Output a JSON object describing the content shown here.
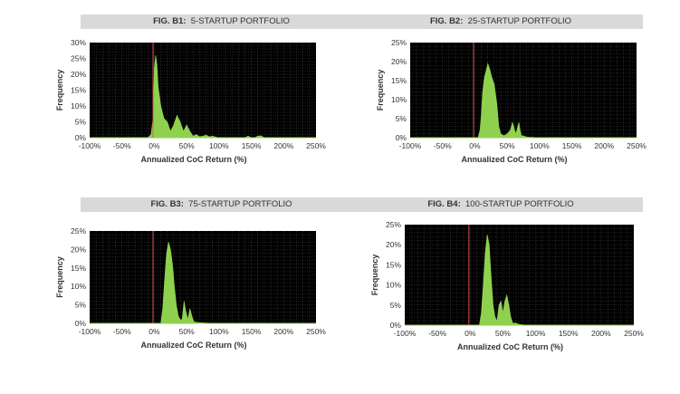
{
  "colors": {
    "plot_bg": "#000000",
    "grid": "#4a4a4a",
    "area_fill": "#8fd14f",
    "marker_line": "#d9534f",
    "title_bar": "#d9d9d9"
  },
  "chart_data": [
    {
      "type": "area",
      "fig_label": "FIG. B1:",
      "title": "5-STARTUP PORTFOLIO",
      "xlabel": "Annualized CoC Return (%)",
      "ylabel": "Frequency",
      "xlim": [
        -100,
        250
      ],
      "ylim": [
        0,
        30
      ],
      "x_ticks": [
        "-100%",
        "-50%",
        "0%",
        "50%",
        "100%",
        "150%",
        "200%",
        "250%"
      ],
      "y_ticks": [
        "0%",
        "5%",
        "10%",
        "15%",
        "20%",
        "25%",
        "30%"
      ],
      "reference_line_x": -2,
      "grid": true,
      "series": [
        {
          "x": [
            -100,
            -10,
            -5,
            -2,
            0,
            2,
            4,
            6,
            10,
            15,
            20,
            25,
            30,
            35,
            40,
            45,
            50,
            55,
            60,
            65,
            70,
            75,
            80,
            85,
            90,
            95,
            100,
            140,
            145,
            150,
            155,
            160,
            165,
            170,
            175,
            180,
            250
          ],
          "y": [
            0,
            0,
            1,
            6,
            22,
            26,
            23,
            16,
            10,
            6,
            5,
            2,
            4,
            7,
            5,
            2,
            4,
            2,
            0.5,
            1,
            0.3,
            0.5,
            0.8,
            0.3,
            0.5,
            0.2,
            0,
            0,
            0.5,
            0,
            0,
            0.5,
            0.6,
            0,
            0,
            0,
            0
          ]
        }
      ]
    },
    {
      "type": "area",
      "fig_label": "FIG. B2:",
      "title": "25-STARTUP PORTFOLIO",
      "xlabel": "Annualized CoC Return (%)",
      "ylabel": "Frequency",
      "xlim": [
        -100,
        250
      ],
      "ylim": [
        0,
        25
      ],
      "x_ticks": [
        "-100%",
        "-50%",
        "0%",
        "50%",
        "100%",
        "150%",
        "200%",
        "250%"
      ],
      "y_ticks": [
        "0%",
        "5%",
        "10%",
        "15%",
        "20%",
        "25%"
      ],
      "reference_line_x": -2,
      "grid": true,
      "series": [
        {
          "x": [
            -100,
            5,
            8,
            10,
            12,
            15,
            18,
            20,
            23,
            26,
            30,
            34,
            37,
            40,
            45,
            50,
            55,
            58,
            60,
            63,
            65,
            68,
            70,
            72,
            75,
            78,
            80,
            85,
            90,
            95,
            250
          ],
          "y": [
            0,
            0,
            2,
            6,
            12,
            16,
            18,
            19.5,
            18,
            16,
            14,
            9,
            3,
            1,
            0.5,
            1,
            2,
            4,
            3,
            1,
            2,
            4,
            2,
            0.5,
            0.5,
            0.3,
            0.2,
            0.1,
            0.1,
            0,
            0
          ]
        }
      ]
    },
    {
      "type": "area",
      "fig_label": "FIG. B3:",
      "title": "75-STARTUP PORTFOLIO",
      "xlabel": "Annualized CoC Return (%)",
      "ylabel": "Frequency",
      "xlim": [
        -100,
        250
      ],
      "ylim": [
        0,
        25
      ],
      "x_ticks": [
        "-100%",
        "-50%",
        "0%",
        "50%",
        "100%",
        "150%",
        "200%",
        "250%"
      ],
      "y_ticks": [
        "0%",
        "5%",
        "10%",
        "15%",
        "20%",
        "25%"
      ],
      "reference_line_x": -2,
      "grid": true,
      "series": [
        {
          "x": [
            -100,
            10,
            13,
            16,
            19,
            22,
            25,
            28,
            31,
            34,
            37,
            40,
            43,
            46,
            49,
            52,
            55,
            58,
            61,
            64,
            70,
            80,
            90,
            250
          ],
          "y": [
            0,
            0,
            4,
            12,
            19,
            22,
            20,
            16,
            10,
            5,
            2,
            1,
            1,
            6,
            3,
            1,
            4,
            2,
            0.5,
            0.3,
            0.2,
            0.1,
            0,
            0
          ]
        }
      ]
    },
    {
      "type": "area",
      "fig_label": "FIG. B4:",
      "title": "100-STARTUP PORTFOLIO",
      "xlabel": "Annualized CoC Return (%)",
      "ylabel": "Frequency",
      "xlim": [
        -100,
        250
      ],
      "ylim": [
        0,
        25
      ],
      "x_ticks": [
        "-100%",
        "-50%",
        "0%",
        "50%",
        "100%",
        "150%",
        "200%",
        "250%"
      ],
      "y_ticks": [
        "0%",
        "5%",
        "10%",
        "15%",
        "20%",
        "25%"
      ],
      "reference_line_x": -2,
      "grid": true,
      "series": [
        {
          "x": [
            -100,
            14,
            17,
            20,
            23,
            26,
            29,
            32,
            35,
            38,
            41,
            44,
            47,
            50,
            53,
            56,
            59,
            62,
            65,
            70,
            75,
            80,
            85,
            250
          ],
          "y": [
            0,
            0,
            3,
            10,
            18,
            22.5,
            20,
            12,
            5,
            2,
            1,
            5,
            6,
            3,
            6,
            7.5,
            5,
            2,
            0.5,
            0.5,
            0.2,
            0.1,
            0,
            0
          ]
        }
      ]
    }
  ]
}
